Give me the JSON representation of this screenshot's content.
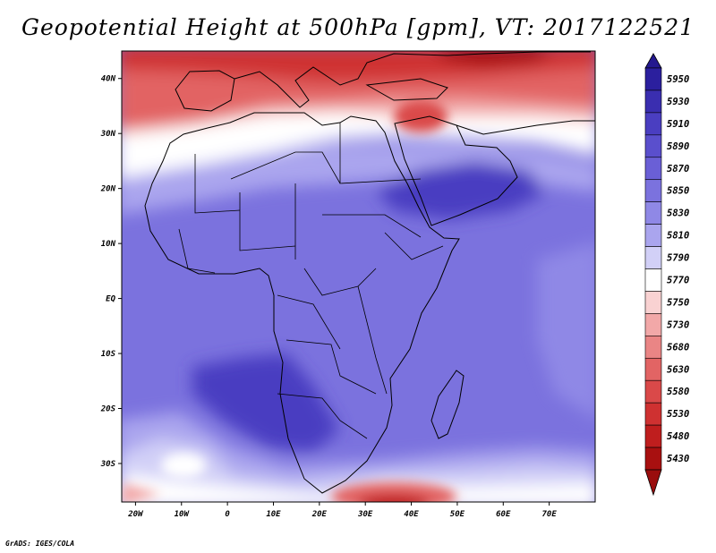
{
  "title": "Geopotential Height at 500hPa [gpm], VT: 2017122521",
  "credit": "GrADS: IGES/COLA",
  "map": {
    "lon_range": [
      -23,
      80
    ],
    "lat_range": [
      -37,
      45
    ],
    "lon_ticks": [
      {
        "label": "20W",
        "value": -20
      },
      {
        "label": "10W",
        "value": -10
      },
      {
        "label": "0",
        "value": 0
      },
      {
        "label": "10E",
        "value": 10
      },
      {
        "label": "20E",
        "value": 20
      },
      {
        "label": "30E",
        "value": 30
      },
      {
        "label": "40E",
        "value": 40
      },
      {
        "label": "50E",
        "value": 50
      },
      {
        "label": "60E",
        "value": 60
      },
      {
        "label": "70E",
        "value": 70
      }
    ],
    "lat_ticks": [
      {
        "label": "40N",
        "value": 40
      },
      {
        "label": "30N",
        "value": 30
      },
      {
        "label": "20N",
        "value": 20
      },
      {
        "label": "10N",
        "value": 10
      },
      {
        "label": "EQ",
        "value": 0
      },
      {
        "label": "10S",
        "value": -10
      },
      {
        "label": "20S",
        "value": -20
      },
      {
        "label": "30S",
        "value": -30
      }
    ]
  },
  "colorbar": {
    "levels": [
      {
        "label": "5950",
        "color": "#2b1f9e"
      },
      {
        "label": "5930",
        "color": "#3a2eb0"
      },
      {
        "label": "5910",
        "color": "#4a3ec1"
      },
      {
        "label": "5890",
        "color": "#5a4fcd"
      },
      {
        "label": "5870",
        "color": "#6a5fd6"
      },
      {
        "label": "5850",
        "color": "#7b72de"
      },
      {
        "label": "5830",
        "color": "#8f88e6"
      },
      {
        "label": "5810",
        "color": "#aaa5ee"
      },
      {
        "label": "5790",
        "color": "#d2d0f7"
      },
      {
        "label": "5770",
        "color": "#ffffff"
      },
      {
        "label": "5750",
        "color": "#f9d2d2"
      },
      {
        "label": "5730",
        "color": "#f2a8a8"
      },
      {
        "label": "5680",
        "color": "#ea8585"
      },
      {
        "label": "5630",
        "color": "#e26464"
      },
      {
        "label": "5580",
        "color": "#da4949"
      },
      {
        "label": "5530",
        "color": "#cf3131"
      },
      {
        "label": "5480",
        "color": "#bf1e1e"
      },
      {
        "label": "5430",
        "color": "#a81010"
      }
    ],
    "top_arrow_color": "#24188f",
    "bottom_arrow_color": "#9a0d0d"
  }
}
